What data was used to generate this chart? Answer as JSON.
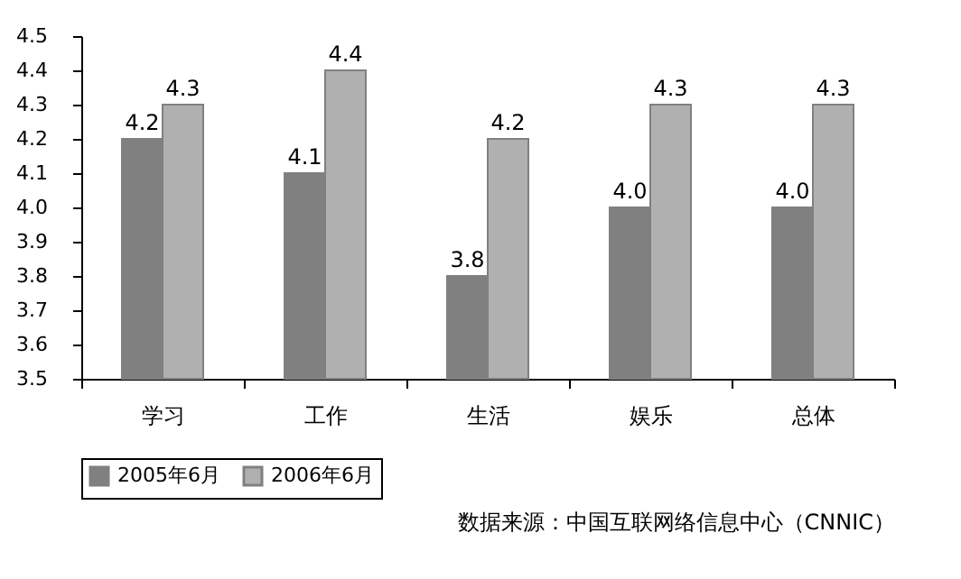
{
  "chart_data": {
    "type": "bar",
    "categories": [
      "学习",
      "工作",
      "生活",
      "娱乐",
      "总体"
    ],
    "series": [
      {
        "name": "2005年6月",
        "color": "#808080",
        "values": [
          4.2,
          4.1,
          3.8,
          4.0,
          4.0
        ],
        "value_labels": [
          "4.2",
          "4.1",
          "3.8",
          "4.0",
          "4.0"
        ]
      },
      {
        "name": "2006年6月",
        "color": "#b0b0b0",
        "values": [
          4.3,
          4.4,
          4.2,
          4.3,
          4.3
        ],
        "value_labels": [
          "4.3",
          "4.4",
          "4.2",
          "4.3",
          "4.3"
        ]
      }
    ],
    "ylim": [
      3.5,
      4.5
    ],
    "yticks": [
      3.5,
      3.6,
      3.7,
      3.8,
      3.9,
      {
        "value": 4.0,
        "label": "4.0"
      },
      4.1,
      4.2,
      4.3,
      4.4,
      4.5
    ],
    "legend": "bottom",
    "grid": false,
    "annotations": [
      "数据来源：中国互联网络信息中心（CNNIC）"
    ]
  }
}
